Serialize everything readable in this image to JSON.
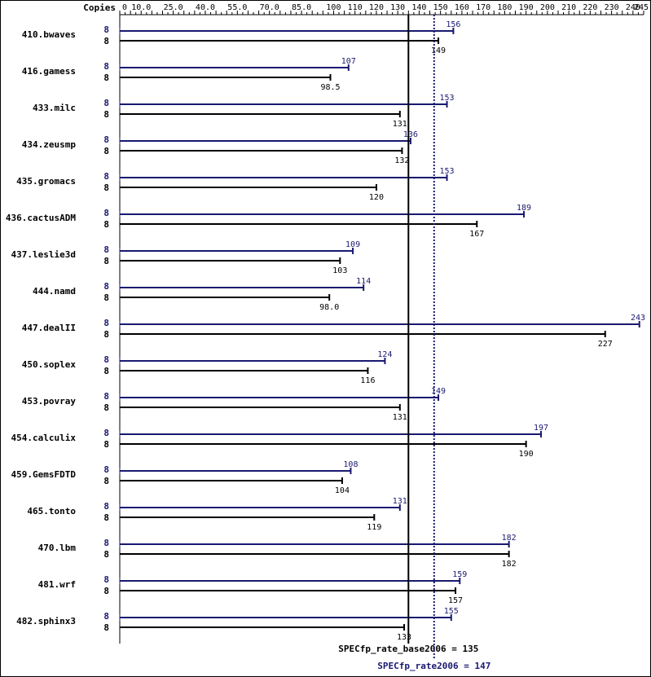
{
  "chart_data": {
    "type": "bar",
    "orientation": "horizontal",
    "x_axis_label": "Copies",
    "ticks": [
      "0",
      "10.0",
      "25.0",
      "40.0",
      "55.0",
      "70.0",
      "85.0",
      "100",
      "110",
      "120",
      "130",
      "140",
      "150",
      "160",
      "170",
      "180",
      "190",
      "200",
      "210",
      "220",
      "230",
      "240",
      "245"
    ],
    "xlim": [
      0,
      245
    ],
    "colors": {
      "peak": "#191970",
      "base": "#000000",
      "background": "#ffffff"
    },
    "benchmarks": [
      {
        "name": "410.bwaves",
        "peak_copies": "8",
        "peak": 156,
        "peak_label": "156",
        "base_copies": "8",
        "base": 149,
        "base_label": "149"
      },
      {
        "name": "416.gamess",
        "peak_copies": "8",
        "peak": 107,
        "peak_label": "107",
        "base_copies": "8",
        "base": 98.5,
        "base_label": "98.5"
      },
      {
        "name": "433.milc",
        "peak_copies": "8",
        "peak": 153,
        "peak_label": "153",
        "base_copies": "8",
        "base": 131,
        "base_label": "131"
      },
      {
        "name": "434.zeusmp",
        "peak_copies": "8",
        "peak": 136,
        "peak_label": "136",
        "base_copies": "8",
        "base": 132,
        "base_label": "132"
      },
      {
        "name": "435.gromacs",
        "peak_copies": "8",
        "peak": 153,
        "peak_label": "153",
        "base_copies": "8",
        "base": 120,
        "base_label": "120"
      },
      {
        "name": "436.cactusADM",
        "peak_copies": "8",
        "peak": 189,
        "peak_label": "189",
        "base_copies": "8",
        "base": 167,
        "base_label": "167"
      },
      {
        "name": "437.leslie3d",
        "peak_copies": "8",
        "peak": 109,
        "peak_label": "109",
        "base_copies": "8",
        "base": 103,
        "base_label": "103"
      },
      {
        "name": "444.namd",
        "peak_copies": "8",
        "peak": 114,
        "peak_label": "114",
        "base_copies": "8",
        "base": 98.0,
        "base_label": "98.0"
      },
      {
        "name": "447.dealII",
        "peak_copies": "8",
        "peak": 243,
        "peak_label": "243",
        "base_copies": "8",
        "base": 227,
        "base_label": "227"
      },
      {
        "name": "450.soplex",
        "peak_copies": "8",
        "peak": 124,
        "peak_label": "124",
        "base_copies": "8",
        "base": 116,
        "base_label": "116"
      },
      {
        "name": "453.povray",
        "peak_copies": "8",
        "peak": 149,
        "peak_label": "149",
        "base_copies": "8",
        "base": 131,
        "base_label": "131"
      },
      {
        "name": "454.calculix",
        "peak_copies": "8",
        "peak": 197,
        "peak_label": "197",
        "base_copies": "8",
        "base": 190,
        "base_label": "190"
      },
      {
        "name": "459.GemsFDTD",
        "peak_copies": "8",
        "peak": 108,
        "peak_label": "108",
        "base_copies": "8",
        "base": 104,
        "base_label": "104"
      },
      {
        "name": "465.tonto",
        "peak_copies": "8",
        "peak": 131,
        "peak_label": "131",
        "base_copies": "8",
        "base": 119,
        "base_label": "119"
      },
      {
        "name": "470.lbm",
        "peak_copies": "8",
        "peak": 182,
        "peak_label": "182",
        "base_copies": "8",
        "base": 182,
        "base_label": "182"
      },
      {
        "name": "481.wrf",
        "peak_copies": "8",
        "peak": 159,
        "peak_label": "159",
        "base_copies": "8",
        "base": 157,
        "base_label": "157"
      },
      {
        "name": "482.sphinx3",
        "peak_copies": "8",
        "peak": 155,
        "peak_label": "155",
        "base_copies": "8",
        "base": 133,
        "base_label": "133"
      }
    ],
    "base_mean": {
      "value": 135,
      "label": "SPECfp_rate_base2006 = 135"
    },
    "peak_mean": {
      "value": 147,
      "label": "SPECfp_rate2006 = 147"
    }
  }
}
